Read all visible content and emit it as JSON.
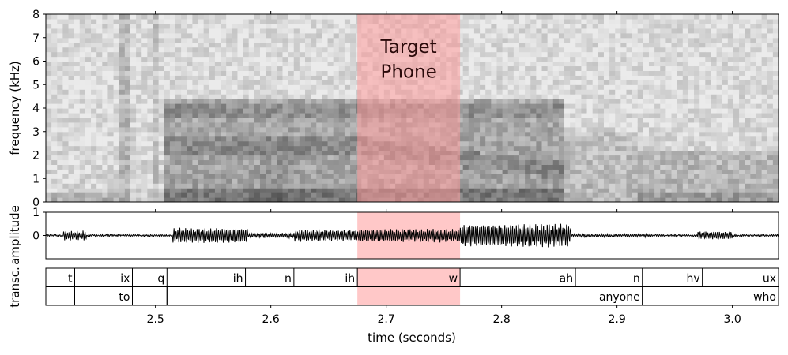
{
  "chart_data": [
    {
      "type": "heatmap",
      "name": "spectrogram",
      "ylabel": "frequency (kHz)",
      "ylim": [
        0,
        8
      ],
      "yticks": [
        0,
        1,
        2,
        3,
        4,
        5,
        6,
        7,
        8
      ],
      "xlim": [
        2.405,
        3.04
      ],
      "xticks": [
        2.5,
        2.6,
        2.7,
        2.8,
        2.9,
        3.0
      ],
      "highlight": {
        "start": 2.675,
        "end": 2.764,
        "color": "#ff9a9a"
      },
      "annotation": {
        "line1": "Target",
        "line2": "Phone"
      }
    },
    {
      "type": "line",
      "name": "waveform",
      "ylabel": "amplitude",
      "ylim": [
        -1.0,
        1.0
      ],
      "yticks": [
        0,
        1
      ],
      "xlim": [
        2.405,
        3.04
      ]
    },
    {
      "type": "table",
      "name": "transcription",
      "ylabel": "transc.",
      "xlabel": "time (seconds)",
      "xlim": [
        2.405,
        3.04
      ],
      "xticks": [
        2.5,
        2.6,
        2.7,
        2.8,
        2.9,
        3.0
      ],
      "xtick_labels": [
        "2.5",
        "2.6",
        "2.7",
        "2.8",
        "2.9",
        "3.0"
      ],
      "phones": [
        {
          "label": "t",
          "start": 2.405,
          "end": 2.43
        },
        {
          "label": "ix",
          "start": 2.43,
          "end": 2.48
        },
        {
          "label": "q",
          "start": 2.48,
          "end": 2.51
        },
        {
          "label": "ih",
          "start": 2.51,
          "end": 2.578
        },
        {
          "label": "n",
          "start": 2.578,
          "end": 2.62
        },
        {
          "label": "ih",
          "start": 2.62,
          "end": 2.675
        },
        {
          "label": "w",
          "start": 2.675,
          "end": 2.764
        },
        {
          "label": "ah",
          "start": 2.764,
          "end": 2.864
        },
        {
          "label": "n",
          "start": 2.864,
          "end": 2.922
        },
        {
          "label": "hv",
          "start": 2.922,
          "end": 2.974
        },
        {
          "label": "ux",
          "start": 2.974,
          "end": 3.04
        }
      ],
      "words": [
        {
          "label": "to",
          "start": 2.43,
          "end": 2.48
        },
        {
          "label": "",
          "start": 2.48,
          "end": 2.51
        },
        {
          "label": "anyone",
          "start": 2.51,
          "end": 2.922
        },
        {
          "label": "who",
          "start": 2.922,
          "end": 3.04
        }
      ]
    }
  ]
}
